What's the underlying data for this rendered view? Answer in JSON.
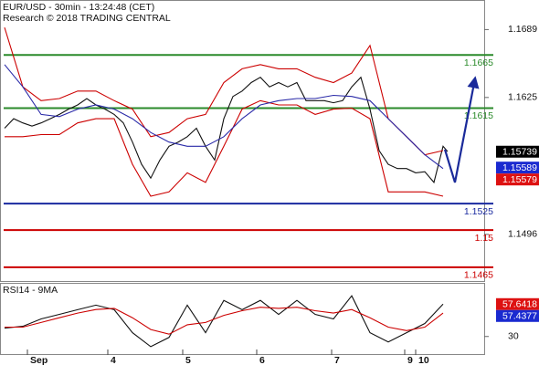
{
  "chart_data": [
    {
      "type": "line",
      "title": "EUR/USD - 30min - 13:24:48 (CET)",
      "subtitle": "Research © 2018 TRADING CENTRAL",
      "xlim": [
        0,
        53
      ],
      "ylim": [
        1.1452,
        1.1716
      ],
      "yticks": [
        1.1689,
        1.1625,
        1.1496
      ],
      "series": [
        {
          "color": "#111111",
          "x": [
            0.5,
            1.5,
            2.5,
            3.5,
            4.5,
            5.5,
            6.5,
            7.5,
            8.5,
            9.5,
            10.5,
            11.5,
            12.5,
            13.5,
            14.5,
            15.5,
            16.5,
            17.5,
            18.5,
            19.5,
            20.5,
            21.5,
            22.5,
            23.5,
            24.5,
            25.5,
            26.5,
            27.5,
            28.5,
            29.5,
            30.5,
            31.5,
            32.5,
            33.5,
            34.5,
            35.5,
            36.5,
            37.5,
            38.5,
            39.5,
            40.5,
            41.5,
            42.5,
            43.5,
            44.5,
            45.5,
            46.5,
            47.5,
            48.5,
            49.0
          ],
          "values": [
            1.1596,
            1.1605,
            1.1601,
            1.1598,
            1.1601,
            1.1605,
            1.1609,
            1.1614,
            1.1618,
            1.1624,
            1.1618,
            1.1614,
            1.1609,
            1.1601,
            1.1583,
            1.1562,
            1.1549,
            1.1566,
            1.1579,
            1.1583,
            1.1588,
            1.1596,
            1.1579,
            1.1566,
            1.1605,
            1.1626,
            1.1631,
            1.1639,
            1.1644,
            1.1635,
            1.1639,
            1.1635,
            1.1639,
            1.1622,
            1.1622,
            1.1622,
            1.162,
            1.1622,
            1.1635,
            1.1644,
            1.1614,
            1.1575,
            1.1562,
            1.1558,
            1.1558,
            1.1554,
            1.1555,
            1.1545,
            1.1579,
            1.1574
          ]
        },
        {
          "color": "#cc0000",
          "x": [
            0.5,
            2.5,
            4.5,
            6.5,
            8.5,
            10.5,
            12.5,
            14.5,
            16.5,
            18.5,
            20.5,
            22.5,
            24.5,
            26.5,
            28.5,
            30.5,
            32.5,
            34.5,
            36.5,
            38.5,
            40.5,
            42.5,
            44.5,
            46.5,
            48.5
          ],
          "values": [
            1.1691,
            1.1635,
            1.1622,
            1.1624,
            1.1631,
            1.1631,
            1.1622,
            1.1614,
            1.1588,
            1.1592,
            1.1605,
            1.1609,
            1.1639,
            1.1652,
            1.1656,
            1.1652,
            1.1652,
            1.1644,
            1.1639,
            1.1648,
            1.1674,
            1.1605,
            1.1588,
            1.1571,
            1.1575
          ]
        },
        {
          "color": "#cc0000",
          "x": [
            0.5,
            2.5,
            4.5,
            6.5,
            8.5,
            10.5,
            12.5,
            14.5,
            16.5,
            18.5,
            20.5,
            22.5,
            24.5,
            26.5,
            28.5,
            30.5,
            32.5,
            34.5,
            36.5,
            38.5,
            40.5,
            42.5,
            44.5,
            46.5,
            48.5
          ],
          "values": [
            1.1588,
            1.1588,
            1.159,
            1.159,
            1.1601,
            1.1605,
            1.1605,
            1.1562,
            1.1532,
            1.1536,
            1.1554,
            1.1545,
            1.1579,
            1.1614,
            1.1622,
            1.1618,
            1.1618,
            1.1609,
            1.1614,
            1.1615,
            1.1605,
            1.1536,
            1.1536,
            1.1536,
            1.1532
          ]
        },
        {
          "color": "#2a2aa8",
          "x": [
            0.5,
            2.5,
            4.5,
            6.5,
            8.5,
            10.5,
            12.5,
            14.5,
            16.5,
            18.5,
            20.5,
            22.5,
            24.5,
            26.5,
            28.5,
            30.5,
            32.5,
            34.5,
            36.5,
            38.5,
            40.5,
            42.5,
            44.5,
            46.5,
            48.5
          ],
          "values": [
            1.1656,
            1.1635,
            1.1609,
            1.1607,
            1.1614,
            1.1618,
            1.1614,
            1.1605,
            1.1592,
            1.1583,
            1.1579,
            1.1579,
            1.1588,
            1.1605,
            1.1618,
            1.1622,
            1.1624,
            1.1624,
            1.1627,
            1.1626,
            1.1622,
            1.1605,
            1.1588,
            1.1571,
            1.1558
          ]
        },
        {
          "color": "#1a2a9a",
          "arrow": true,
          "x": [
            48.7,
            49.8,
            52
          ],
          "values": [
            1.1576,
            1.1545,
            1.1643
          ]
        }
      ],
      "levels": [
        {
          "value": 1.1665,
          "color": "#2a8a2a"
        },
        {
          "value": 1.1615,
          "color": "#2a8a2a"
        },
        {
          "value": 1.1525,
          "color": "#1a2aa0"
        },
        {
          "value": 1.15,
          "color": "#cc0000"
        },
        {
          "value": 1.1465,
          "color": "#cc0000"
        }
      ],
      "price_labels": [
        {
          "value": 1.15739,
          "color": "#000000"
        },
        {
          "value": 1.15589,
          "color": "#1a2ad0"
        },
        {
          "value": 1.15579,
          "color": "#dd1111"
        }
      ]
    },
    {
      "type": "line",
      "title": "RSI14 - 9MA",
      "xlim": [
        0,
        53
      ],
      "ylim": [
        15,
        75
      ],
      "yticks": [
        30
      ],
      "xticks": [
        {
          "value": 3,
          "label": "Sep"
        },
        {
          "value": 11.8,
          "label": "4"
        },
        {
          "value": 20,
          "label": "5"
        },
        {
          "value": 28.1,
          "label": "6"
        },
        {
          "value": 36.3,
          "label": "7"
        },
        {
          "value": 44.3,
          "label": "9"
        },
        {
          "value": 45.5,
          "label": "10"
        }
      ],
      "series": [
        {
          "color": "#111111",
          "x": [
            0.5,
            2.5,
            4.5,
            6.5,
            8.5,
            10.5,
            12.5,
            14.5,
            16.5,
            18.5,
            20.5,
            22.5,
            24.5,
            26.5,
            28.5,
            30.5,
            32.5,
            34.5,
            36.5,
            38.5,
            40.5,
            42.5,
            44.5,
            46.5,
            48.5
          ],
          "values": [
            37.1,
            38.7,
            45,
            48.9,
            52.9,
            56.8,
            52.9,
            33.2,
            21.3,
            29.2,
            56.8,
            33.2,
            60.8,
            52.9,
            60.8,
            48.9,
            60.8,
            48.9,
            45,
            64.7,
            33.2,
            25.3,
            33.2,
            41.1,
            57.6
          ]
        },
        {
          "color": "#cc0000",
          "x": [
            0.5,
            2.5,
            4.5,
            6.5,
            8.5,
            10.5,
            12.5,
            14.5,
            16.5,
            18.5,
            20.5,
            22.5,
            24.5,
            26.5,
            28.5,
            30.5,
            32.5,
            34.5,
            36.5,
            38.5,
            40.5,
            42.5,
            44.5,
            46.5,
            48.5
          ],
          "values": [
            38,
            38,
            42,
            46,
            50,
            53,
            54,
            46,
            36,
            32,
            40,
            42,
            48,
            52,
            55,
            54,
            55,
            52,
            50,
            53,
            46,
            38,
            35,
            38,
            50
          ]
        }
      ],
      "price_labels": [
        {
          "value": 57.6418,
          "color": "#dd1111"
        },
        {
          "value": 57.4377,
          "color": "#1a2ad0"
        }
      ]
    }
  ]
}
